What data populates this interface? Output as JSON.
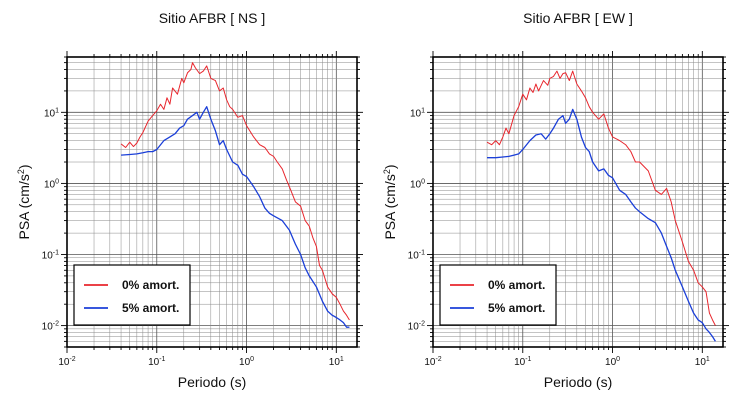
{
  "chart_data": [
    {
      "type": "line",
      "title": "Sitio AFBR [ NS ]",
      "xlabel": "Periodo (s)",
      "ylabel": "PSA (cm/s²)",
      "xscale": "log",
      "yscale": "log",
      "xlim": [
        0.01,
        17
      ],
      "ylim": [
        0.005,
        60
      ],
      "xticks": [
        {
          "value": 0.01,
          "base": "10",
          "exp": "-2"
        },
        {
          "value": 0.1,
          "base": "10",
          "exp": "-1"
        },
        {
          "value": 1,
          "base": "10",
          "exp": "0"
        },
        {
          "value": 10,
          "base": "10",
          "exp": "1"
        }
      ],
      "yticks": [
        {
          "value": 0.01,
          "base": "10",
          "exp": "-2"
        },
        {
          "value": 0.1,
          "base": "10",
          "exp": "-1"
        },
        {
          "value": 1,
          "base": "10",
          "exp": "0"
        },
        {
          "value": 10,
          "base": "10",
          "exp": "1"
        }
      ],
      "grid": true,
      "legend_position": "bottom-left",
      "series": [
        {
          "name": "0% amort.",
          "color": "#e8262d",
          "x": [
            0.04,
            0.045,
            0.05,
            0.055,
            0.06,
            0.065,
            0.07,
            0.08,
            0.09,
            0.1,
            0.11,
            0.12,
            0.13,
            0.14,
            0.15,
            0.17,
            0.19,
            0.2,
            0.22,
            0.24,
            0.25,
            0.27,
            0.3,
            0.33,
            0.36,
            0.4,
            0.45,
            0.5,
            0.55,
            0.6,
            0.65,
            0.7,
            0.8,
            0.9,
            1.0,
            1.2,
            1.4,
            1.6,
            1.8,
            2.0,
            2.2,
            2.5,
            2.8,
            3.0,
            3.5,
            4.0,
            4.5,
            5.0,
            5.5,
            6.0,
            6.5,
            7.0,
            8.0,
            9.0,
            10.0,
            11.0,
            12.0,
            13.0,
            14.0
          ],
          "y": [
            3.6,
            3.2,
            3.8,
            3.3,
            3.7,
            4.5,
            5.2,
            7.5,
            9.0,
            10.5,
            13.0,
            11.0,
            16.0,
            13.0,
            22.0,
            18.0,
            30.0,
            26.0,
            36.0,
            40.0,
            50.0,
            42.0,
            35.0,
            38.0,
            45.0,
            30.0,
            28.0,
            20.0,
            22.0,
            15.0,
            12.0,
            11.0,
            8.5,
            9.0,
            6.5,
            4.5,
            3.5,
            3.2,
            2.6,
            2.4,
            2.0,
            1.6,
            1.1,
            0.9,
            0.55,
            0.48,
            0.3,
            0.25,
            0.17,
            0.13,
            0.07,
            0.06,
            0.035,
            0.028,
            0.025,
            0.02,
            0.016,
            0.014,
            0.012
          ]
        },
        {
          "name": "5% amort.",
          "color": "#1b3fd8",
          "x": [
            0.04,
            0.05,
            0.06,
            0.07,
            0.08,
            0.09,
            0.1,
            0.12,
            0.14,
            0.16,
            0.18,
            0.2,
            0.22,
            0.25,
            0.28,
            0.3,
            0.33,
            0.36,
            0.4,
            0.45,
            0.5,
            0.55,
            0.6,
            0.7,
            0.8,
            0.9,
            1.0,
            1.2,
            1.4,
            1.6,
            1.8,
            2.0,
            2.5,
            3.0,
            3.5,
            4.0,
            4.5,
            5.0,
            6.0,
            7.0,
            8.0,
            9.0,
            10.0,
            11.0,
            12.0,
            13.0,
            14.0
          ],
          "y": [
            2.5,
            2.55,
            2.6,
            2.7,
            2.8,
            2.8,
            3.0,
            4.0,
            4.5,
            5.0,
            6.0,
            6.5,
            8.0,
            9.0,
            10.0,
            8.0,
            10.0,
            12.0,
            8.0,
            5.5,
            3.5,
            4.0,
            3.0,
            2.0,
            1.8,
            1.35,
            1.25,
            0.9,
            0.65,
            0.45,
            0.38,
            0.35,
            0.3,
            0.22,
            0.14,
            0.1,
            0.065,
            0.05,
            0.035,
            0.022,
            0.016,
            0.014,
            0.013,
            0.012,
            0.011,
            0.0095,
            0.0095
          ]
        }
      ]
    },
    {
      "type": "line",
      "title": "Sitio AFBR [ EW ]",
      "xlabel": "Periodo (s)",
      "ylabel": "PSA (cm/s²)",
      "xscale": "log",
      "yscale": "log",
      "xlim": [
        0.01,
        17
      ],
      "ylim": [
        0.005,
        60
      ],
      "xticks": [
        {
          "value": 0.01,
          "base": "10",
          "exp": "-2"
        },
        {
          "value": 0.1,
          "base": "10",
          "exp": "-1"
        },
        {
          "value": 1,
          "base": "10",
          "exp": "0"
        },
        {
          "value": 10,
          "base": "10",
          "exp": "1"
        }
      ],
      "yticks": [
        {
          "value": 0.01,
          "base": "10",
          "exp": "-2"
        },
        {
          "value": 0.1,
          "base": "10",
          "exp": "-1"
        },
        {
          "value": 1,
          "base": "10",
          "exp": "0"
        },
        {
          "value": 10,
          "base": "10",
          "exp": "1"
        }
      ],
      "grid": true,
      "legend_position": "bottom-left",
      "series": [
        {
          "name": "0% amort.",
          "color": "#e8262d",
          "x": [
            0.04,
            0.045,
            0.05,
            0.055,
            0.06,
            0.065,
            0.07,
            0.08,
            0.09,
            0.1,
            0.11,
            0.12,
            0.13,
            0.14,
            0.15,
            0.17,
            0.19,
            0.2,
            0.22,
            0.24,
            0.26,
            0.28,
            0.3,
            0.33,
            0.36,
            0.4,
            0.45,
            0.5,
            0.55,
            0.6,
            0.7,
            0.8,
            0.9,
            1.0,
            1.2,
            1.4,
            1.6,
            1.8,
            2.0,
            2.5,
            3.0,
            3.5,
            4.0,
            4.5,
            5.0,
            6.0,
            7.0,
            8.0,
            9.0,
            10.0,
            11.0,
            12.0,
            13.0,
            14.0
          ],
          "y": [
            3.8,
            3.5,
            4.0,
            3.5,
            4.5,
            6.0,
            5.0,
            9.0,
            12.0,
            18.0,
            15.0,
            22.0,
            19.0,
            25.0,
            20.0,
            28.0,
            24.0,
            30.0,
            32.0,
            38.0,
            30.0,
            35.0,
            36.0,
            28.0,
            38.0,
            25.0,
            20.0,
            16.0,
            12.0,
            10.0,
            8.0,
            9.5,
            6.0,
            4.5,
            4.0,
            3.5,
            2.8,
            2.0,
            2.0,
            1.5,
            0.8,
            0.7,
            0.85,
            0.55,
            0.3,
            0.15,
            0.08,
            0.06,
            0.04,
            0.035,
            0.03,
            0.015,
            0.012,
            0.01
          ]
        },
        {
          "name": "5% amort.",
          "color": "#1b3fd8",
          "x": [
            0.04,
            0.05,
            0.06,
            0.07,
            0.08,
            0.09,
            0.1,
            0.12,
            0.14,
            0.16,
            0.18,
            0.2,
            0.22,
            0.25,
            0.28,
            0.3,
            0.33,
            0.36,
            0.4,
            0.45,
            0.5,
            0.55,
            0.6,
            0.7,
            0.8,
            0.9,
            1.0,
            1.2,
            1.4,
            1.6,
            1.8,
            2.0,
            2.5,
            3.0,
            3.5,
            4.0,
            4.5,
            5.0,
            6.0,
            7.0,
            8.0,
            9.0,
            10.0,
            11.0,
            12.0,
            13.0,
            14.0
          ],
          "y": [
            2.3,
            2.3,
            2.35,
            2.4,
            2.5,
            2.6,
            3.0,
            4.0,
            4.8,
            5.0,
            4.2,
            5.0,
            6.0,
            8.0,
            9.0,
            7.0,
            8.0,
            11.0,
            8.0,
            4.5,
            3.2,
            2.8,
            2.0,
            1.5,
            1.6,
            1.3,
            1.2,
            0.8,
            0.7,
            0.55,
            0.45,
            0.4,
            0.32,
            0.28,
            0.2,
            0.13,
            0.09,
            0.06,
            0.035,
            0.022,
            0.015,
            0.012,
            0.011,
            0.009,
            0.008,
            0.007,
            0.006
          ]
        }
      ]
    }
  ]
}
